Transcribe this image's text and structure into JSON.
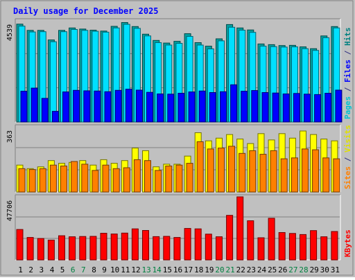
{
  "chart_data": {
    "type": "bar",
    "title": "Daily usage for December 2025",
    "categories": [
      "1",
      "2",
      "3",
      "4",
      "5",
      "6",
      "7",
      "8",
      "9",
      "10",
      "11",
      "12",
      "13",
      "14",
      "15",
      "16",
      "17",
      "18",
      "19",
      "20",
      "21",
      "22",
      "23",
      "24",
      "25",
      "26",
      "27",
      "28",
      "29",
      "30",
      "31"
    ],
    "weekend_days": [
      "6",
      "7",
      "13",
      "14",
      "20",
      "21",
      "27",
      "28"
    ],
    "panels": [
      {
        "id": "hits-files-pages",
        "max_label": "4539",
        "ymax": 4539,
        "right_label": [
          {
            "text": "Pages",
            "color": "#00c0d0"
          },
          {
            "text": " / ",
            "color": "#303080"
          },
          {
            "text": "Files",
            "color": "#0000ff"
          },
          {
            "text": " / ",
            "color": "#303080"
          },
          {
            "text": "Hits",
            "color": "#008080"
          }
        ],
        "series": [
          {
            "name": "Hits",
            "color": "#00a0a0",
            "values": [
              4390,
              4110,
              4110,
              3680,
              4110,
              4220,
              4170,
              4120,
              4080,
              4290,
              4460,
              4280,
              3940,
              3660,
              3540,
              3620,
              3960,
              3560,
              3400,
              3730,
              4370,
              4220,
              4130,
              3500,
              3470,
              3430,
              3440,
              3370,
              3290,
              3860,
              4280
            ]
          },
          {
            "name": "Files",
            "color": "#00e0ff",
            "values": [
              4300,
              4040,
              4050,
              3600,
              4050,
              4150,
              4110,
              4070,
              4030,
              4220,
              4380,
              4200,
              3860,
              3560,
              3450,
              3530,
              3840,
              3450,
              3280,
              3640,
              4250,
              4120,
              4020,
              3400,
              3380,
              3360,
              3370,
              3290,
              3210,
              3780,
              4220
            ]
          },
          {
            "name": "Pages",
            "color": "#0000ff",
            "values": [
              1380,
              1520,
              1060,
              480,
              1350,
              1420,
              1400,
              1390,
              1360,
              1420,
              1470,
              1430,
              1330,
              1260,
              1250,
              1290,
              1350,
              1390,
              1320,
              1360,
              1670,
              1380,
              1410,
              1320,
              1300,
              1260,
              1280,
              1250,
              1230,
              1290,
              1430
            ]
          }
        ]
      },
      {
        "id": "visits-sites",
        "max_label": "363",
        "ymax": 363,
        "right_label": [
          {
            "text": "Sites",
            "color": "#ff8000"
          },
          {
            "text": " / ",
            "color": "#303080"
          },
          {
            "text": "Visits",
            "color": "#e0e000"
          }
        ],
        "series": [
          {
            "name": "Visits",
            "color": "#ffff00",
            "values": [
              150,
              130,
              140,
              175,
              160,
              165,
              175,
              150,
              180,
              160,
              175,
              245,
              230,
              140,
              155,
              155,
              200,
              330,
              285,
              300,
              320,
              295,
              270,
              325,
              290,
              325,
              300,
              340,
              320,
              295,
              285
            ]
          },
          {
            "name": "Sites",
            "color": "#ff8000",
            "values": [
              130,
              125,
              130,
              150,
              145,
              170,
              155,
              120,
              150,
              130,
              135,
              180,
              175,
              120,
              145,
              150,
              160,
              280,
              240,
              245,
              255,
              215,
              230,
              210,
              230,
              185,
              190,
              240,
              235,
              190,
              185
            ]
          }
        ]
      },
      {
        "id": "kbytes",
        "max_label": "47706",
        "ymax": 47706,
        "right_label": [
          {
            "text": "KBytes",
            "color": "#ff0000"
          }
        ],
        "series": [
          {
            "name": "KBytes",
            "color": "#ff0000",
            "values": [
              23000,
              17000,
              16200,
              15000,
              18300,
              17500,
              17700,
              17800,
              20200,
              19600,
              20300,
              23500,
              22300,
              17600,
              17800,
              17000,
              23800,
              23500,
              19500,
              17500,
              33700,
              48400,
              29600,
              16800,
              31500,
              20700,
              20000,
              19200,
              22200,
              17500,
              21500
            ]
          }
        ]
      }
    ]
  }
}
